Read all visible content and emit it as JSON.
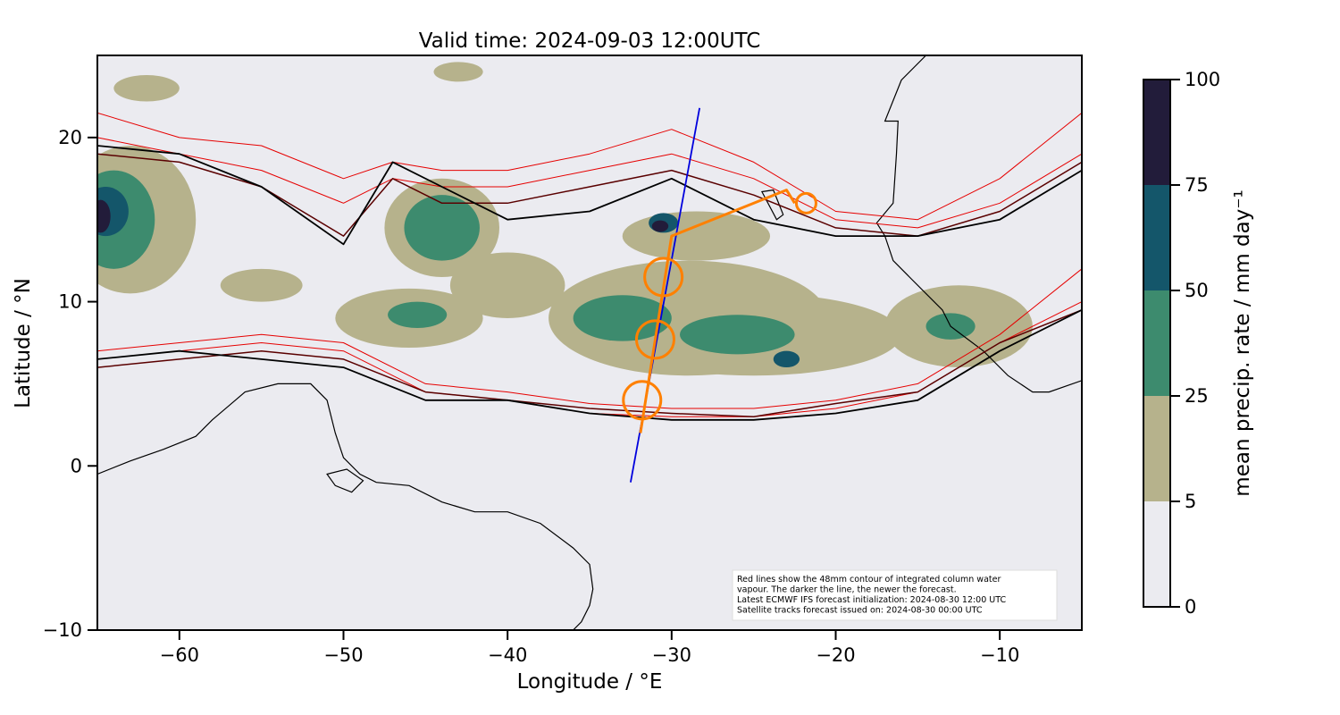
{
  "title": "Valid time: 2024-09-03 12:00UTC",
  "xlabel": "Longitude / °E",
  "ylabel": "Latitude / °N",
  "colorbar_label": "mean precip. rate / mm day⁻¹",
  "x_range": [
    -65,
    -5
  ],
  "y_range": [
    -10,
    25
  ],
  "x_ticks": [
    {
      "value": -60,
      "label": "−60"
    },
    {
      "value": -50,
      "label": "−50"
    },
    {
      "value": -40,
      "label": "−40"
    },
    {
      "value": -30,
      "label": "−30"
    },
    {
      "value": -20,
      "label": "−20"
    },
    {
      "value": -10,
      "label": "−10"
    }
  ],
  "y_ticks": [
    {
      "value": -10,
      "label": "−10"
    },
    {
      "value": 0,
      "label": "0"
    },
    {
      "value": 10,
      "label": "10"
    },
    {
      "value": 20,
      "label": "20"
    }
  ],
  "colorbar": {
    "bounds": [
      0,
      5,
      25,
      50,
      75,
      100
    ],
    "labels": [
      "0",
      "5",
      "25",
      "50",
      "75",
      "100"
    ],
    "colors": [
      "#ebebf0",
      "#b6b28c",
      "#3d8b6e",
      "#14566a",
      "#221c3a"
    ]
  },
  "colors": {
    "background": "#ebebf0",
    "coast": "#000000",
    "iwv_old": "#e60000",
    "iwv_mid": "#5a0000",
    "iwv_new": "#000000",
    "blue_track": "#0000dd",
    "orange_track": "#ff8000"
  },
  "annotation": {
    "lines": [
      "Red lines show the 48mm contour of integrated column water",
      "vapour. The darker the line, the newer the forecast.",
      "Latest ECMWF IFS forecast initialization: 2024-08-30 12:00 UTC",
      "Satellite tracks forecast issued on: 2024-08-30 00:00 UTC"
    ]
  },
  "tracks": {
    "blue": [
      [
        -32.5,
        -1.0
      ],
      [
        -28.3,
        21.8
      ]
    ],
    "orange": [
      [
        -31.9,
        2.0
      ],
      [
        -30.0,
        14.0
      ],
      [
        -23.0,
        16.8
      ],
      [
        -22.5,
        16.0
      ]
    ],
    "circles": [
      [
        -31.8,
        4.0
      ],
      [
        -31.0,
        7.7
      ],
      [
        -30.5,
        11.5
      ],
      [
        -21.8,
        16.0
      ]
    ]
  },
  "precip_blobs": [
    {
      "lon": -44.0,
      "lat": 14.5,
      "rlon": 3.5,
      "rlat": 3.0,
      "level": 1
    },
    {
      "lon": -44.0,
      "lat": 14.5,
      "rlon": 2.3,
      "rlat": 2.0,
      "level": 2
    },
    {
      "lon": -63.0,
      "lat": 15.0,
      "rlon": 4.0,
      "rlat": 4.5,
      "level": 1
    },
    {
      "lon": -64.0,
      "lat": 15.0,
      "rlon": 2.5,
      "rlat": 3.0,
      "level": 2
    },
    {
      "lon": -64.5,
      "lat": 15.5,
      "rlon": 1.4,
      "rlat": 1.5,
      "level": 3
    },
    {
      "lon": -64.8,
      "lat": 15.2,
      "rlon": 0.6,
      "rlat": 1.0,
      "level": 4
    },
    {
      "lon": -29.0,
      "lat": 9.0,
      "rlon": 8.5,
      "rlat": 3.5,
      "level": 1
    },
    {
      "lon": -25.0,
      "lat": 8.0,
      "rlon": 9.0,
      "rlat": 2.5,
      "level": 1
    },
    {
      "lon": -46.0,
      "lat": 9.0,
      "rlon": 4.5,
      "rlat": 1.8,
      "level": 1
    },
    {
      "lon": -40.0,
      "lat": 11.0,
      "rlon": 3.5,
      "rlat": 2.0,
      "level": 1
    },
    {
      "lon": -12.5,
      "lat": 8.5,
      "rlon": 4.5,
      "rlat": 2.5,
      "level": 1
    },
    {
      "lon": -28.5,
      "lat": 14.0,
      "rlon": 4.5,
      "rlat": 1.5,
      "level": 1
    },
    {
      "lon": -55.0,
      "lat": 11.0,
      "rlon": 2.5,
      "rlat": 1.0,
      "level": 1
    },
    {
      "lon": -33.0,
      "lat": 9.0,
      "rlon": 3.0,
      "rlat": 1.4,
      "level": 2
    },
    {
      "lon": -26.0,
      "lat": 8.0,
      "rlon": 3.5,
      "rlat": 1.2,
      "level": 2
    },
    {
      "lon": -45.5,
      "lat": 9.2,
      "rlon": 1.8,
      "rlat": 0.8,
      "level": 2
    },
    {
      "lon": -13.0,
      "lat": 8.5,
      "rlon": 1.5,
      "rlat": 0.8,
      "level": 2
    },
    {
      "lon": -30.5,
      "lat": 14.8,
      "rlon": 0.9,
      "rlat": 0.6,
      "level": 3
    },
    {
      "lon": -30.7,
      "lat": 14.6,
      "rlon": 0.5,
      "rlat": 0.35,
      "level": 4
    },
    {
      "lon": -23.0,
      "lat": 6.5,
      "rlon": 0.8,
      "rlat": 0.5,
      "level": 3
    },
    {
      "lon": -43.0,
      "lat": 24.0,
      "rlon": 1.5,
      "rlat": 0.6,
      "level": 1
    },
    {
      "lon": -62.0,
      "lat": 23.0,
      "rlon": 2.0,
      "rlat": 0.8,
      "level": 1
    }
  ],
  "coast": {
    "south_america": [
      [
        -65,
        -0.5
      ],
      [
        -63,
        0.3
      ],
      [
        -61,
        1
      ],
      [
        -59,
        1.8
      ],
      [
        -58,
        2.8
      ],
      [
        -56,
        4.5
      ],
      [
        -54,
        5
      ],
      [
        -52,
        5
      ],
      [
        -51,
        4
      ],
      [
        -50.5,
        2
      ],
      [
        -50,
        0.5
      ],
      [
        -49,
        -0.5
      ],
      [
        -48,
        -1
      ],
      [
        -46,
        -1.2
      ],
      [
        -44,
        -2.2
      ],
      [
        -42,
        -2.8
      ],
      [
        -40,
        -2.8
      ],
      [
        -38,
        -3.5
      ],
      [
        -36,
        -5
      ],
      [
        -35,
        -6
      ],
      [
        -34.8,
        -7.5
      ],
      [
        -35,
        -8.5
      ],
      [
        -35.5,
        -9.5
      ],
      [
        -36,
        -10
      ]
    ],
    "africa": [
      [
        -5,
        5.2
      ],
      [
        -7,
        4.5
      ],
      [
        -8,
        4.5
      ],
      [
        -9.5,
        5.5
      ],
      [
        -11,
        7
      ],
      [
        -13,
        8.5
      ],
      [
        -13.5,
        9.5
      ],
      [
        -14.5,
        10.5
      ],
      [
        -15.5,
        11.5
      ],
      [
        -16.5,
        12.5
      ],
      [
        -17,
        14
      ],
      [
        -17.5,
        14.8
      ],
      [
        -16.5,
        16
      ],
      [
        -16.3,
        19
      ],
      [
        -16.2,
        21
      ],
      [
        -17,
        21
      ],
      [
        -16,
        23.5
      ],
      [
        -14.5,
        25
      ]
    ],
    "cape_verde": [
      [
        -24.5,
        16.7
      ],
      [
        -23.8,
        16.8
      ],
      [
        -23.2,
        15.3
      ],
      [
        -23.6,
        15.0
      ]
    ],
    "amazon_islands": [
      [
        -51,
        -0.5
      ],
      [
        -49.8,
        -0.2
      ],
      [
        -48.8,
        -0.9
      ],
      [
        -49.5,
        -1.6
      ],
      [
        -50.5,
        -1.2
      ]
    ]
  },
  "iwv_contours": [
    {
      "color": "iwv_old",
      "width": 1.0,
      "north": [
        [
          -65,
          21.5
        ],
        [
          -60,
          20
        ],
        [
          -55,
          19.5
        ],
        [
          -50,
          17.5
        ],
        [
          -47,
          18.5
        ],
        [
          -44,
          18
        ],
        [
          -40,
          18
        ],
        [
          -35,
          19
        ],
        [
          -30,
          20.5
        ],
        [
          -25,
          18.5
        ],
        [
          -20,
          15.5
        ],
        [
          -15,
          15
        ],
        [
          -10,
          17.5
        ],
        [
          -5,
          21.5
        ]
      ],
      "south": [
        [
          -65,
          7
        ],
        [
          -60,
          7.5
        ],
        [
          -55,
          8
        ],
        [
          -50,
          7.5
        ],
        [
          -45,
          5
        ],
        [
          -40,
          4.5
        ],
        [
          -35,
          3.8
        ],
        [
          -30,
          3.5
        ],
        [
          -25,
          3.5
        ],
        [
          -20,
          4
        ],
        [
          -15,
          5
        ],
        [
          -10,
          8
        ],
        [
          -5,
          12
        ]
      ]
    },
    {
      "color": "iwv_old",
      "width": 1.0,
      "north": [
        [
          -65,
          20
        ],
        [
          -60,
          19
        ],
        [
          -55,
          18
        ],
        [
          -50,
          16
        ],
        [
          -47,
          17.5
        ],
        [
          -44,
          17
        ],
        [
          -40,
          17
        ],
        [
          -35,
          18
        ],
        [
          -30,
          19
        ],
        [
          -25,
          17.5
        ],
        [
          -20,
          15
        ],
        [
          -15,
          14.5
        ],
        [
          -10,
          16
        ],
        [
          -5,
          19
        ]
      ],
      "south": [
        [
          -65,
          6.5
        ],
        [
          -60,
          7
        ],
        [
          -55,
          7.5
        ],
        [
          -50,
          7
        ],
        [
          -45,
          4.5
        ],
        [
          -40,
          4
        ],
        [
          -35,
          3.2
        ],
        [
          -30,
          3
        ],
        [
          -25,
          3
        ],
        [
          -20,
          3.5
        ],
        [
          -15,
          4.5
        ],
        [
          -10,
          7.5
        ],
        [
          -5,
          10
        ]
      ]
    },
    {
      "color": "iwv_mid",
      "width": 1.5,
      "north": [
        [
          -65,
          19
        ],
        [
          -60,
          18.5
        ],
        [
          -55,
          17
        ],
        [
          -50,
          14
        ],
        [
          -47,
          17.5
        ],
        [
          -44,
          16
        ],
        [
          -40,
          16
        ],
        [
          -35,
          17
        ],
        [
          -30,
          18
        ],
        [
          -25,
          16.5
        ],
        [
          -20,
          14.5
        ],
        [
          -15,
          14
        ],
        [
          -10,
          15.5
        ],
        [
          -5,
          18.5
        ]
      ],
      "south": [
        [
          -65,
          6
        ],
        [
          -60,
          6.5
        ],
        [
          -55,
          7
        ],
        [
          -50,
          6.5
        ],
        [
          -45,
          4.5
        ],
        [
          -40,
          4
        ],
        [
          -35,
          3.5
        ],
        [
          -30,
          3.2
        ],
        [
          -25,
          3
        ],
        [
          -20,
          3.8
        ],
        [
          -15,
          4.5
        ],
        [
          -10,
          7.5
        ],
        [
          -5,
          9.5
        ]
      ]
    },
    {
      "color": "iwv_new",
      "width": 1.8,
      "north": [
        [
          -65,
          19.5
        ],
        [
          -60,
          19
        ],
        [
          -55,
          17
        ],
        [
          -50,
          13.5
        ],
        [
          -47,
          18.5
        ],
        [
          -44,
          17
        ],
        [
          -40,
          15
        ],
        [
          -35,
          15.5
        ],
        [
          -30,
          17.5
        ],
        [
          -25,
          15
        ],
        [
          -20,
          14
        ],
        [
          -15,
          14
        ],
        [
          -10,
          15
        ],
        [
          -5,
          18
        ]
      ],
      "south": [
        [
          -65,
          6.5
        ],
        [
          -60,
          7
        ],
        [
          -55,
          6.5
        ],
        [
          -50,
          6
        ],
        [
          -45,
          4
        ],
        [
          -40,
          4
        ],
        [
          -35,
          3.2
        ],
        [
          -30,
          2.8
        ],
        [
          -25,
          2.8
        ],
        [
          -20,
          3.2
        ],
        [
          -15,
          4
        ],
        [
          -10,
          7
        ],
        [
          -5,
          9.5
        ]
      ]
    }
  ]
}
